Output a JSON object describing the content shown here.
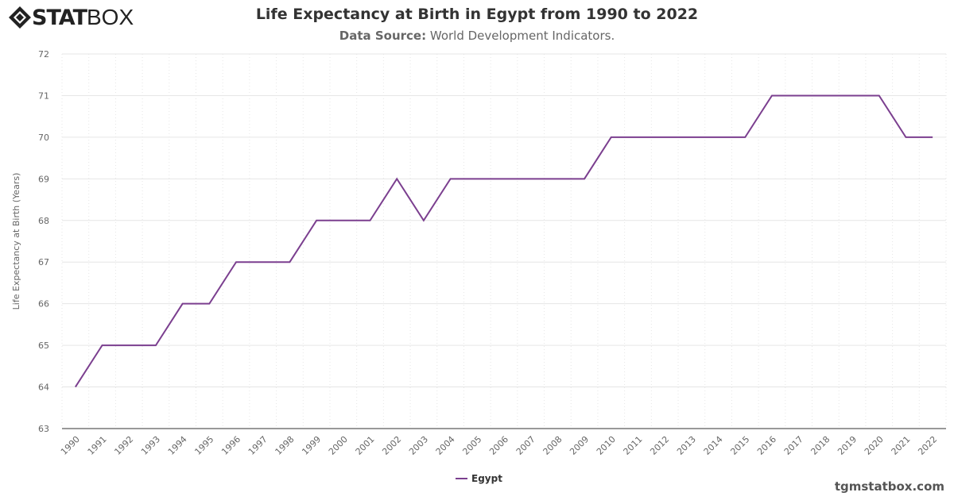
{
  "brand": {
    "logo_bold": "STAT",
    "logo_thin": "BOX"
  },
  "header": {
    "title": "Life Expectancy at Birth in Egypt from 1990 to 2022",
    "source_label": "Data Source:",
    "source_value": " World Development Indicators."
  },
  "footer": {
    "site": "tgmstatbox.com"
  },
  "chart_data": {
    "type": "line",
    "title": "Life Expectancy at Birth in Egypt from 1990 to 2022",
    "xlabel": "",
    "ylabel": "Life Expectancy at Birth (Years)",
    "ylim": [
      63,
      72
    ],
    "yticks": [
      63,
      64,
      65,
      66,
      67,
      68,
      69,
      70,
      71,
      72
    ],
    "grid": true,
    "legend": "bottom-center",
    "categories": [
      "1990",
      "1991",
      "1992",
      "1993",
      "1994",
      "1995",
      "1996",
      "1997",
      "1998",
      "1999",
      "2000",
      "2001",
      "2002",
      "2003",
      "2004",
      "2005",
      "2006",
      "2007",
      "2008",
      "2009",
      "2010",
      "2011",
      "2012",
      "2013",
      "2014",
      "2015",
      "2016",
      "2017",
      "2018",
      "2019",
      "2020",
      "2021",
      "2022"
    ],
    "series": [
      {
        "name": "Egypt",
        "color": "#7b3f8f",
        "values": [
          64,
          65,
          65,
          65,
          66,
          66,
          67,
          67,
          67,
          68,
          68,
          68,
          69,
          68,
          69,
          69,
          69,
          69,
          69,
          69,
          70,
          70,
          70,
          70,
          70,
          70,
          71,
          71,
          71,
          71,
          71,
          70,
          70
        ]
      }
    ]
  }
}
